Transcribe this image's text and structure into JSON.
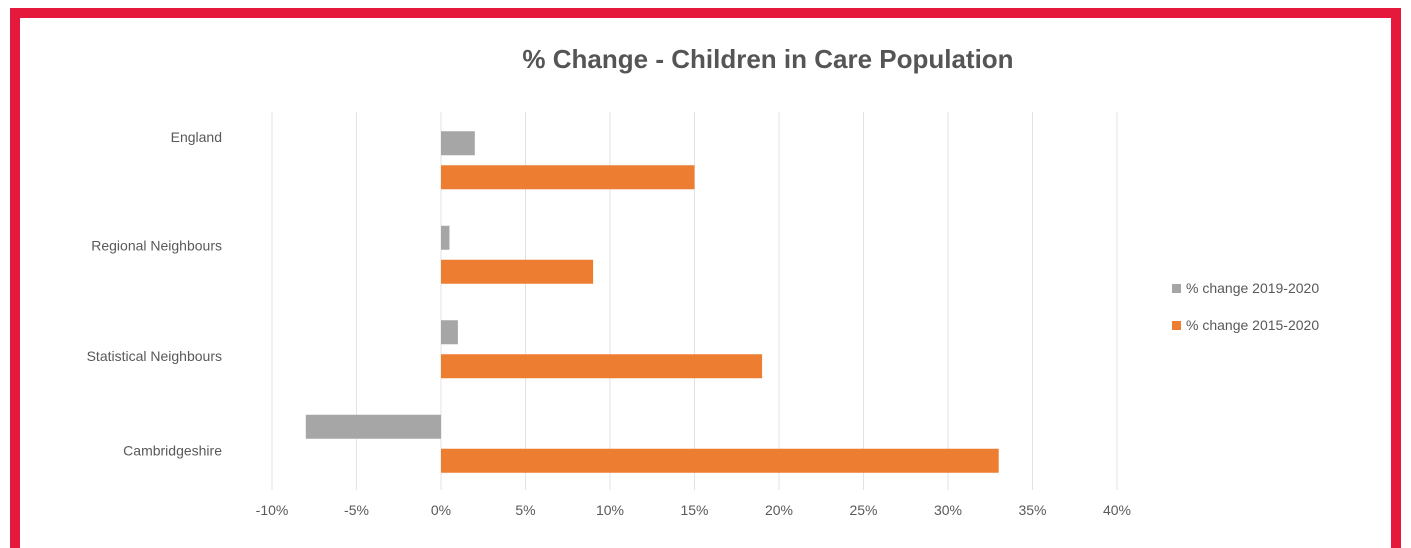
{
  "chart_data": {
    "type": "bar",
    "orientation": "horizontal",
    "title": "% Change - Children in Care Population",
    "categories": [
      "England",
      "Regional Neighbours",
      "Statistical Neighbours",
      "Cambridgeshire"
    ],
    "series": [
      {
        "name": "% change 2019-2020",
        "color": "#a6a6a6",
        "values": [
          2,
          0.5,
          1,
          -8
        ]
      },
      {
        "name": "% change 2015-2020",
        "color": "#ed7d31",
        "values": [
          15,
          9,
          19,
          33
        ]
      }
    ],
    "xlim": [
      -10,
      40
    ],
    "xticks": [
      "-10%",
      "-5%",
      "0%",
      "5%",
      "10%",
      "15%",
      "20%",
      "25%",
      "30%",
      "35%",
      "40%"
    ],
    "grid": true,
    "legend": "right",
    "xlabel": "",
    "ylabel": ""
  }
}
